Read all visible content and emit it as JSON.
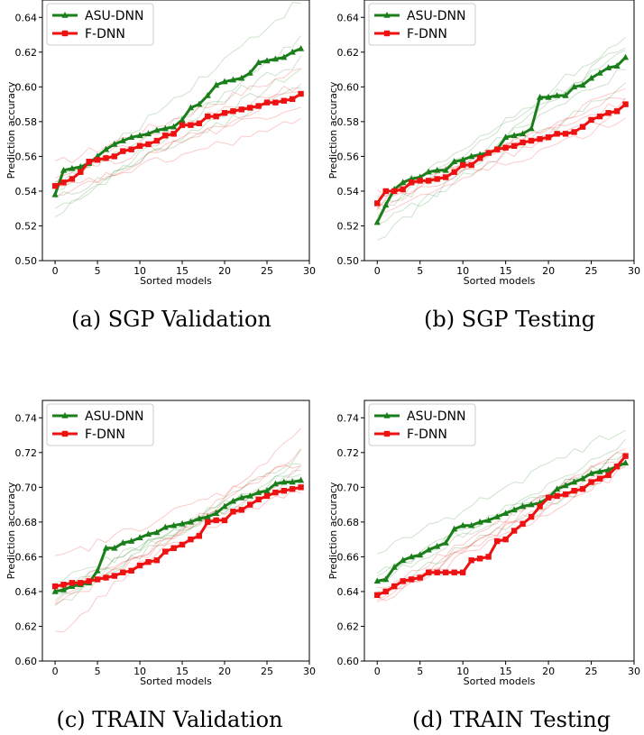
{
  "chart_data": [
    {
      "type": "line",
      "caption": "(a) SGP Validation",
      "xlabel": "Sorted models",
      "ylabel": "Prediction accuracy",
      "xlim": [
        -1.5,
        30
      ],
      "ylim": [
        0.5,
        0.65
      ],
      "xticks": [
        0,
        5,
        10,
        15,
        20,
        25,
        30
      ],
      "yticks": [
        0.5,
        0.52,
        0.54,
        0.56,
        0.58,
        0.6,
        0.62,
        0.64
      ],
      "ytick_labels": [
        "0.50",
        "0.52",
        "0.54",
        "0.56",
        "0.58",
        "0.60",
        "0.62",
        "0.64"
      ],
      "legend_position": "top-left",
      "series": [
        {
          "name": "ASU-DNN",
          "color": "#1a7f1a",
          "marker": "triangle",
          "x": [
            0,
            1,
            2,
            3,
            4,
            5,
            6,
            7,
            8,
            9,
            10,
            11,
            12,
            13,
            14,
            15,
            16,
            17,
            18,
            19,
            20,
            21,
            22,
            23,
            24,
            25,
            26,
            27,
            28,
            29
          ],
          "values": [
            0.538,
            0.552,
            0.553,
            0.554,
            0.556,
            0.56,
            0.564,
            0.567,
            0.569,
            0.571,
            0.572,
            0.573,
            0.575,
            0.576,
            0.577,
            0.581,
            0.588,
            0.59,
            0.595,
            0.601,
            0.603,
            0.604,
            0.605,
            0.608,
            0.614,
            0.615,
            0.616,
            0.617,
            0.62,
            0.622
          ]
        },
        {
          "name": "F-DNN",
          "color": "#ee1111",
          "marker": "square",
          "x": [
            0,
            1,
            2,
            3,
            4,
            5,
            6,
            7,
            8,
            9,
            10,
            11,
            12,
            13,
            14,
            15,
            16,
            17,
            18,
            19,
            20,
            21,
            22,
            23,
            24,
            25,
            26,
            27,
            28,
            29
          ],
          "values": [
            0.543,
            0.545,
            0.547,
            0.551,
            0.557,
            0.558,
            0.559,
            0.56,
            0.563,
            0.564,
            0.566,
            0.567,
            0.569,
            0.572,
            0.573,
            0.578,
            0.578,
            0.579,
            0.583,
            0.583,
            0.585,
            0.586,
            0.587,
            0.588,
            0.589,
            0.591,
            0.591,
            0.592,
            0.593,
            0.596
          ]
        }
      ],
      "faint_lines": {
        "green": [
          {
            "start": 0.53,
            "end": 0.61
          },
          {
            "start": 0.525,
            "end": 0.628
          },
          {
            "start": 0.545,
            "end": 0.615
          },
          {
            "start": 0.54,
            "end": 0.65
          },
          {
            "start": 0.535,
            "end": 0.6
          }
        ],
        "red": [
          {
            "start": 0.555,
            "end": 0.61
          },
          {
            "start": 0.54,
            "end": 0.58
          },
          {
            "start": 0.535,
            "end": 0.6
          },
          {
            "start": 0.548,
            "end": 0.59
          },
          {
            "start": 0.55,
            "end": 0.602
          }
        ]
      }
    },
    {
      "type": "line",
      "caption": "(b) SGP Testing",
      "xlabel": "Sorted models",
      "ylabel": "Prediction accuracy",
      "xlim": [
        -1.5,
        30
      ],
      "ylim": [
        0.5,
        0.65
      ],
      "xticks": [
        0,
        5,
        10,
        15,
        20,
        25,
        30
      ],
      "yticks": [
        0.5,
        0.52,
        0.54,
        0.56,
        0.58,
        0.6,
        0.62,
        0.64
      ],
      "ytick_labels": [
        "0.50",
        "0.52",
        "0.54",
        "0.56",
        "0.58",
        "0.60",
        "0.62",
        "0.64"
      ],
      "legend_position": "top-left",
      "series": [
        {
          "name": "ASU-DNN",
          "color": "#1a7f1a",
          "marker": "triangle",
          "x": [
            0,
            1,
            2,
            3,
            4,
            5,
            6,
            7,
            8,
            9,
            10,
            11,
            12,
            13,
            14,
            15,
            16,
            17,
            18,
            19,
            20,
            21,
            22,
            23,
            24,
            25,
            26,
            27,
            28,
            29
          ],
          "values": [
            0.522,
            0.532,
            0.541,
            0.545,
            0.547,
            0.548,
            0.551,
            0.552,
            0.552,
            0.557,
            0.558,
            0.56,
            0.561,
            0.562,
            0.564,
            0.571,
            0.572,
            0.573,
            0.576,
            0.594,
            0.594,
            0.595,
            0.595,
            0.6,
            0.601,
            0.605,
            0.608,
            0.611,
            0.612,
            0.617
          ]
        },
        {
          "name": "F-DNN",
          "color": "#ee1111",
          "marker": "square",
          "x": [
            0,
            1,
            2,
            3,
            4,
            5,
            6,
            7,
            8,
            9,
            10,
            11,
            12,
            13,
            14,
            15,
            16,
            17,
            18,
            19,
            20,
            21,
            22,
            23,
            24,
            25,
            26,
            27,
            28,
            29
          ],
          "values": [
            0.533,
            0.54,
            0.54,
            0.541,
            0.545,
            0.546,
            0.546,
            0.547,
            0.548,
            0.551,
            0.555,
            0.555,
            0.559,
            0.562,
            0.564,
            0.565,
            0.566,
            0.568,
            0.569,
            0.57,
            0.571,
            0.573,
            0.573,
            0.574,
            0.577,
            0.581,
            0.583,
            0.585,
            0.586,
            0.59
          ]
        }
      ],
      "faint_lines": {
        "green": [
          {
            "start": 0.512,
            "end": 0.625
          },
          {
            "start": 0.525,
            "end": 0.63
          },
          {
            "start": 0.53,
            "end": 0.61
          },
          {
            "start": 0.535,
            "end": 0.62
          },
          {
            "start": 0.52,
            "end": 0.6
          }
        ],
        "red": [
          {
            "start": 0.535,
            "end": 0.595
          },
          {
            "start": 0.53,
            "end": 0.6
          },
          {
            "start": 0.528,
            "end": 0.582
          },
          {
            "start": 0.538,
            "end": 0.592
          },
          {
            "start": 0.532,
            "end": 0.586
          }
        ]
      }
    },
    {
      "type": "line",
      "caption": "(c) TRAIN Validation",
      "xlabel": "Sorted models",
      "ylabel": "Prediction accuracy",
      "xlim": [
        -1.5,
        30
      ],
      "ylim": [
        0.6,
        0.75
      ],
      "xticks": [
        0,
        5,
        10,
        15,
        20,
        25,
        30
      ],
      "yticks": [
        0.6,
        0.62,
        0.64,
        0.66,
        0.68,
        0.7,
        0.72,
        0.74
      ],
      "ytick_labels": [
        "0.60",
        "0.62",
        "0.64",
        "0.66",
        "0.68",
        "0.70",
        "0.72",
        "0.74"
      ],
      "legend_position": "top-left",
      "series": [
        {
          "name": "ASU-DNN",
          "color": "#1a7f1a",
          "marker": "triangle",
          "x": [
            0,
            1,
            2,
            3,
            4,
            5,
            6,
            7,
            8,
            9,
            10,
            11,
            12,
            13,
            14,
            15,
            16,
            17,
            18,
            19,
            20,
            21,
            22,
            23,
            24,
            25,
            26,
            27,
            28,
            29
          ],
          "values": [
            0.64,
            0.641,
            0.643,
            0.644,
            0.645,
            0.652,
            0.665,
            0.665,
            0.668,
            0.669,
            0.671,
            0.673,
            0.674,
            0.677,
            0.678,
            0.679,
            0.68,
            0.682,
            0.683,
            0.685,
            0.689,
            0.692,
            0.694,
            0.695,
            0.697,
            0.698,
            0.702,
            0.703,
            0.703,
            0.704
          ]
        },
        {
          "name": "F-DNN",
          "color": "#ee1111",
          "marker": "square",
          "x": [
            0,
            1,
            2,
            3,
            4,
            5,
            6,
            7,
            8,
            9,
            10,
            11,
            12,
            13,
            14,
            15,
            16,
            17,
            18,
            19,
            20,
            21,
            22,
            23,
            24,
            25,
            26,
            27,
            28,
            29
          ],
          "values": [
            0.643,
            0.644,
            0.645,
            0.645,
            0.646,
            0.647,
            0.648,
            0.649,
            0.651,
            0.652,
            0.655,
            0.657,
            0.658,
            0.663,
            0.665,
            0.667,
            0.67,
            0.672,
            0.68,
            0.681,
            0.681,
            0.686,
            0.687,
            0.69,
            0.693,
            0.695,
            0.697,
            0.698,
            0.699,
            0.7
          ]
        }
      ],
      "faint_lines": {
        "green": [
          {
            "start": 0.635,
            "end": 0.712
          },
          {
            "start": 0.632,
            "end": 0.72
          },
          {
            "start": 0.645,
            "end": 0.705
          },
          {
            "start": 0.638,
            "end": 0.715
          },
          {
            "start": 0.642,
            "end": 0.708
          }
        ],
        "red": [
          {
            "start": 0.615,
            "end": 0.733
          },
          {
            "start": 0.63,
            "end": 0.72
          },
          {
            "start": 0.658,
            "end": 0.715
          },
          {
            "start": 0.64,
            "end": 0.698
          },
          {
            "start": 0.636,
            "end": 0.71
          }
        ]
      }
    },
    {
      "type": "line",
      "caption": "(d) TRAIN Testing",
      "xlabel": "Sorted models",
      "ylabel": "Prediction accuracy",
      "xlim": [
        -1.5,
        30
      ],
      "ylim": [
        0.6,
        0.75
      ],
      "xticks": [
        0,
        5,
        10,
        15,
        20,
        25,
        30
      ],
      "yticks": [
        0.6,
        0.62,
        0.64,
        0.66,
        0.68,
        0.7,
        0.72,
        0.74
      ],
      "ytick_labels": [
        "0.60",
        "0.62",
        "0.64",
        "0.66",
        "0.68",
        "0.70",
        "0.72",
        "0.74"
      ],
      "legend_position": "top-left",
      "series": [
        {
          "name": "ASU-DNN",
          "color": "#1a7f1a",
          "marker": "triangle",
          "x": [
            0,
            1,
            2,
            3,
            4,
            5,
            6,
            7,
            8,
            9,
            10,
            11,
            12,
            13,
            14,
            15,
            16,
            17,
            18,
            19,
            20,
            21,
            22,
            23,
            24,
            25,
            26,
            27,
            28,
            29
          ],
          "values": [
            0.646,
            0.647,
            0.654,
            0.658,
            0.66,
            0.661,
            0.664,
            0.666,
            0.668,
            0.676,
            0.678,
            0.678,
            0.68,
            0.681,
            0.683,
            0.685,
            0.687,
            0.689,
            0.69,
            0.691,
            0.694,
            0.699,
            0.701,
            0.703,
            0.705,
            0.708,
            0.709,
            0.71,
            0.712,
            0.714
          ]
        },
        {
          "name": "F-DNN",
          "color": "#ee1111",
          "marker": "square",
          "x": [
            0,
            1,
            2,
            3,
            4,
            5,
            6,
            7,
            8,
            9,
            10,
            11,
            12,
            13,
            14,
            15,
            16,
            17,
            18,
            19,
            20,
            21,
            22,
            23,
            24,
            25,
            26,
            27,
            28,
            29
          ],
          "values": [
            0.638,
            0.64,
            0.643,
            0.646,
            0.647,
            0.648,
            0.651,
            0.651,
            0.651,
            0.651,
            0.651,
            0.658,
            0.659,
            0.66,
            0.669,
            0.67,
            0.675,
            0.679,
            0.683,
            0.689,
            0.694,
            0.695,
            0.696,
            0.698,
            0.699,
            0.703,
            0.705,
            0.707,
            0.712,
            0.718
          ]
        }
      ],
      "faint_lines": {
        "green": [
          {
            "start": 0.662,
            "end": 0.735
          },
          {
            "start": 0.645,
            "end": 0.72
          },
          {
            "start": 0.64,
            "end": 0.712
          },
          {
            "start": 0.65,
            "end": 0.718
          },
          {
            "start": 0.648,
            "end": 0.725
          }
        ],
        "red": [
          {
            "start": 0.632,
            "end": 0.724
          },
          {
            "start": 0.636,
            "end": 0.715
          },
          {
            "start": 0.64,
            "end": 0.72
          },
          {
            "start": 0.634,
            "end": 0.71
          },
          {
            "start": 0.638,
            "end": 0.712
          }
        ]
      }
    }
  ]
}
